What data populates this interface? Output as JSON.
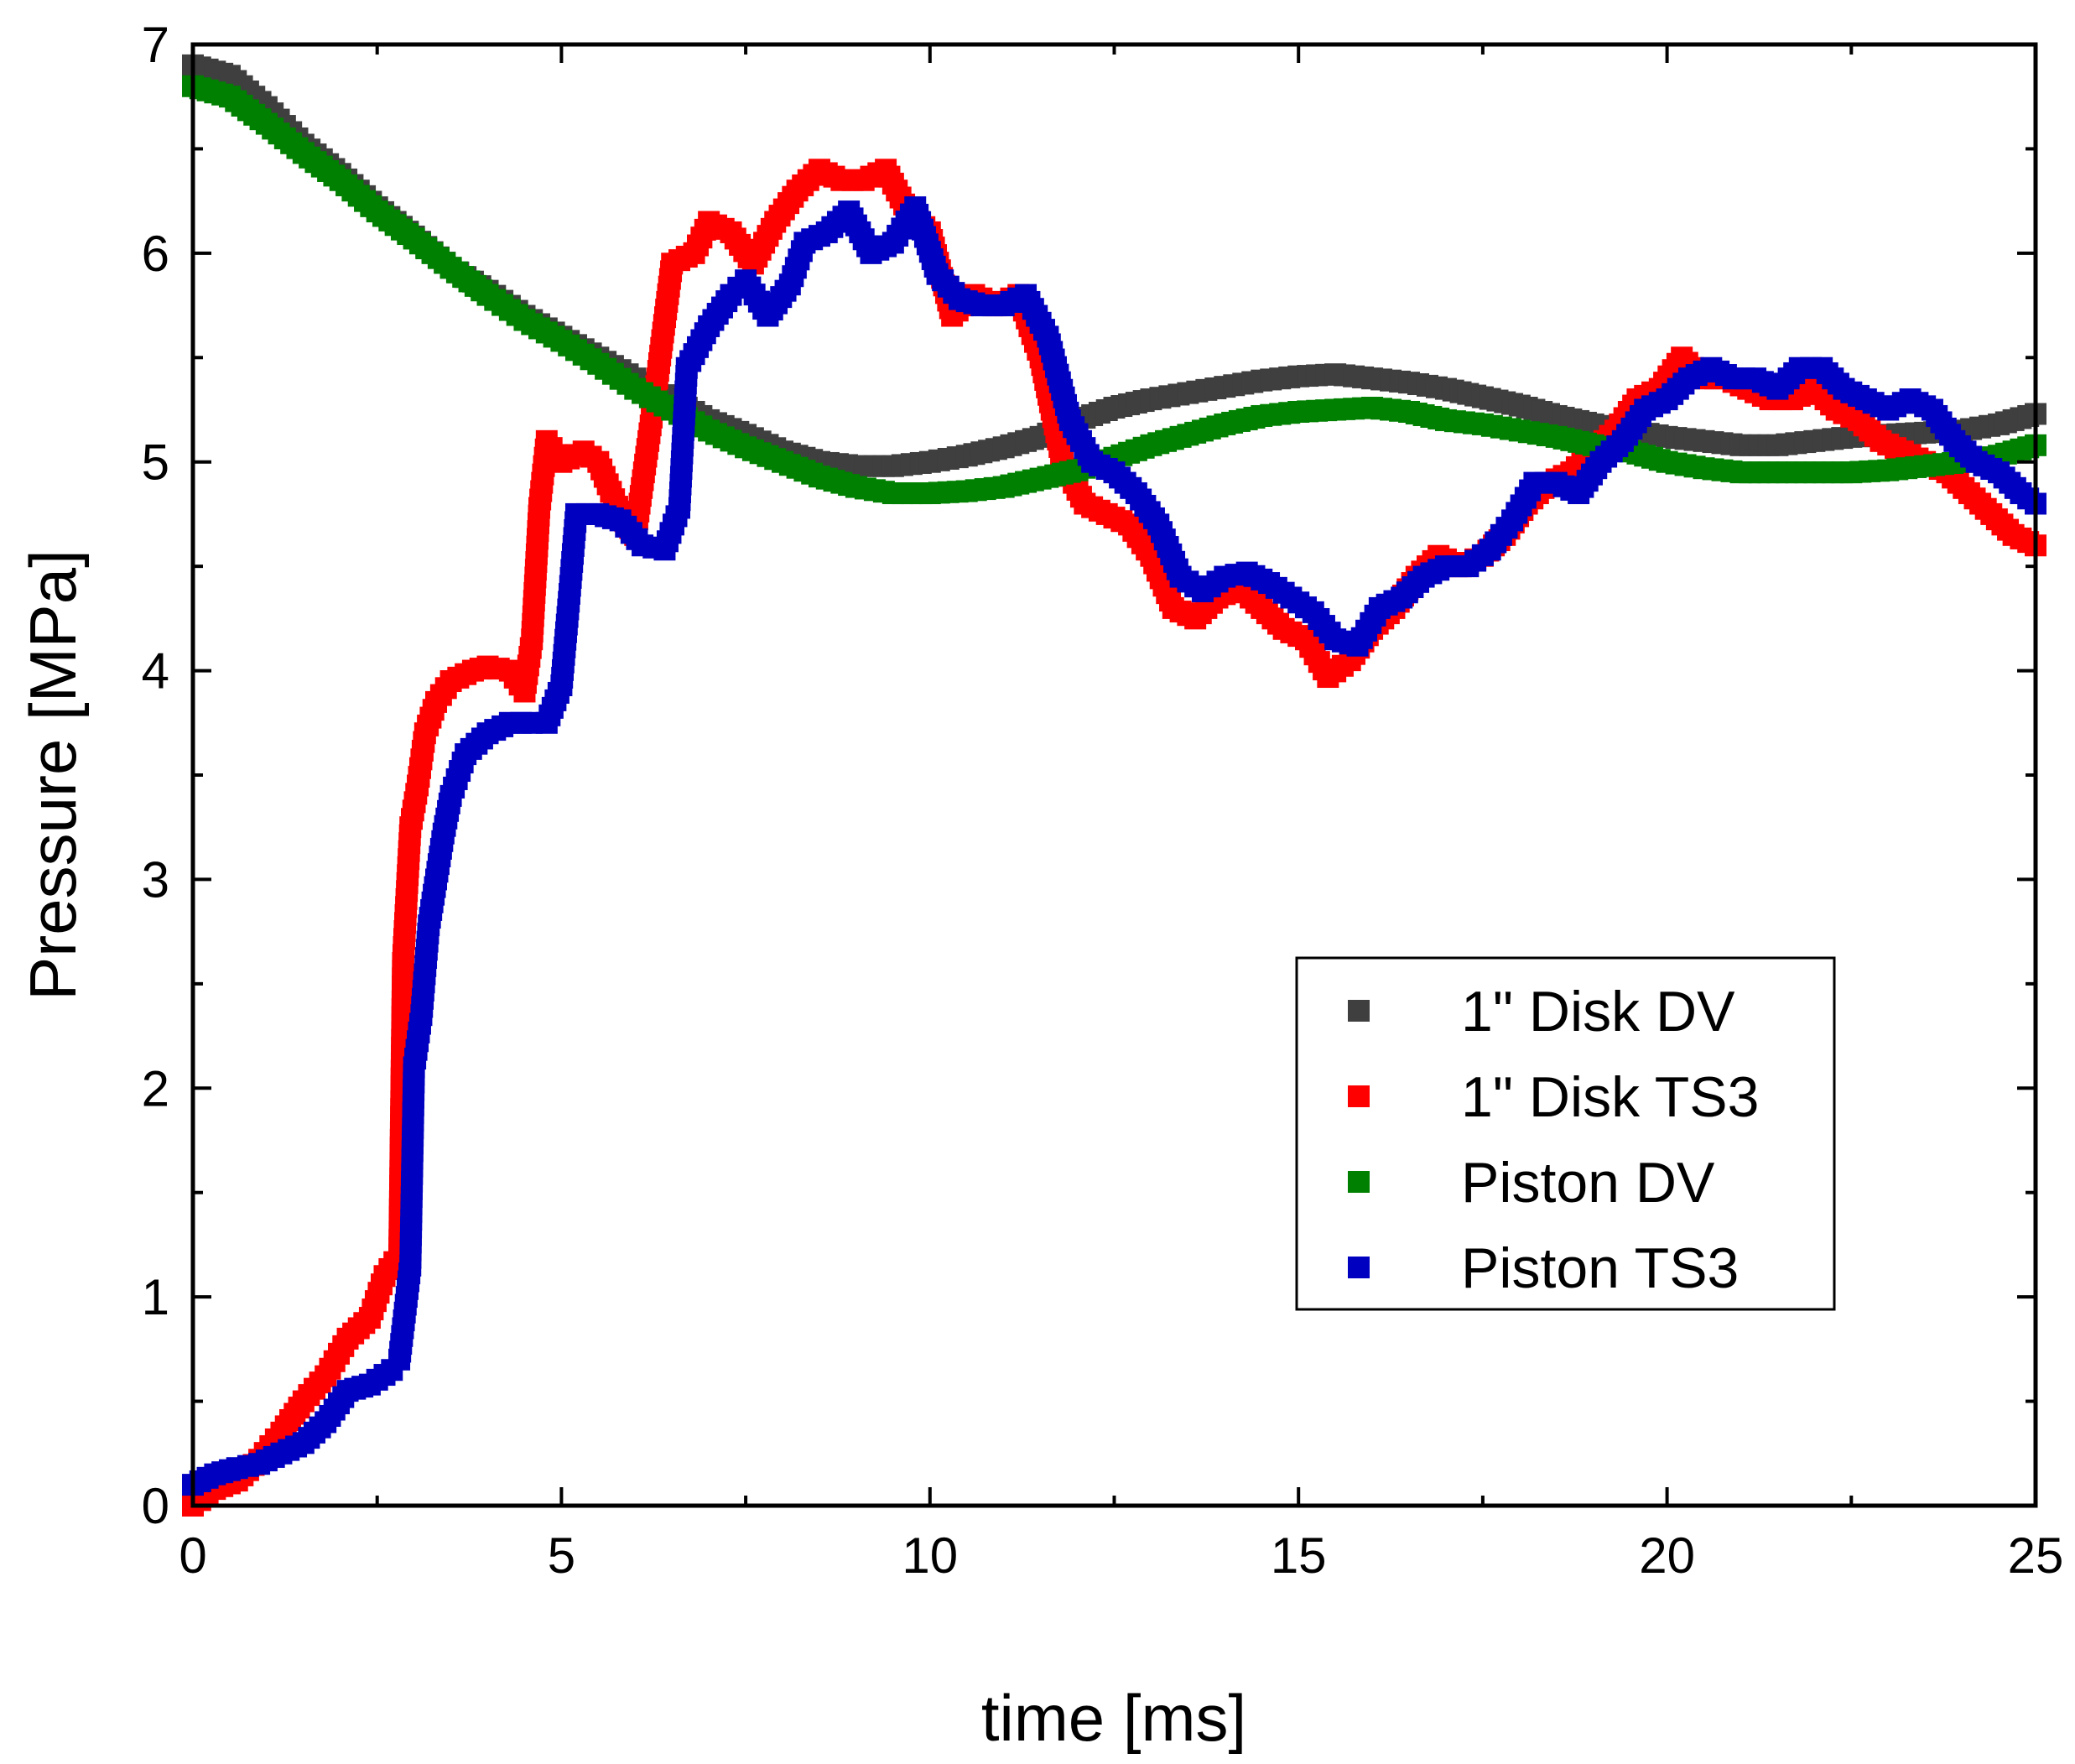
{
  "chart_data": {
    "type": "scatter",
    "title": "",
    "xlabel": "time [ms]",
    "ylabel": "Pressure [MPa]",
    "xlim": [
      0,
      25
    ],
    "ylim": [
      0,
      7
    ],
    "xticks": [
      0,
      5,
      10,
      15,
      20,
      25
    ],
    "yticks": [
      0,
      1,
      2,
      3,
      4,
      5,
      6,
      7
    ],
    "grid": false,
    "legend_position": "lower-right",
    "marker": "square",
    "series": [
      {
        "name": "1\" Disk DV",
        "color": "#3f3f3f",
        "points": [
          [
            0,
            6.9
          ],
          [
            0.5,
            6.85
          ],
          [
            1,
            6.7
          ],
          [
            1.5,
            6.52
          ],
          [
            2,
            6.38
          ],
          [
            2.5,
            6.22
          ],
          [
            3,
            6.08
          ],
          [
            3.5,
            5.93
          ],
          [
            4,
            5.82
          ],
          [
            4.5,
            5.7
          ],
          [
            5,
            5.6
          ],
          [
            5.5,
            5.5
          ],
          [
            6,
            5.4
          ],
          [
            6.5,
            5.3
          ],
          [
            7,
            5.2
          ],
          [
            7.5,
            5.13
          ],
          [
            8,
            5.05
          ],
          [
            8.5,
            5
          ],
          [
            9,
            4.98
          ],
          [
            9.5,
            4.98
          ],
          [
            10,
            5
          ],
          [
            10.5,
            5.03
          ],
          [
            11,
            5.07
          ],
          [
            11.5,
            5.12
          ],
          [
            12,
            5.2
          ],
          [
            12.5,
            5.26
          ],
          [
            13,
            5.3
          ],
          [
            13.5,
            5.33
          ],
          [
            14,
            5.36
          ],
          [
            14.5,
            5.39
          ],
          [
            15,
            5.41
          ],
          [
            15.5,
            5.42
          ],
          [
            16,
            5.4
          ],
          [
            16.5,
            5.38
          ],
          [
            17,
            5.35
          ],
          [
            17.5,
            5.31
          ],
          [
            18,
            5.27
          ],
          [
            18.5,
            5.22
          ],
          [
            19,
            5.18
          ],
          [
            19.5,
            5.15
          ],
          [
            20,
            5.12
          ],
          [
            20.5,
            5.1
          ],
          [
            21,
            5.08
          ],
          [
            21.5,
            5.08
          ],
          [
            22,
            5.1
          ],
          [
            22.5,
            5.12
          ],
          [
            23,
            5.13
          ],
          [
            23.5,
            5.14
          ],
          [
            24,
            5.15
          ],
          [
            24.5,
            5.18
          ],
          [
            25,
            5.23
          ]
        ]
      },
      {
        "name": "1\" Disk TS3",
        "color": "#ff0000",
        "points": [
          [
            0,
            0
          ],
          [
            0.3,
            0.08
          ],
          [
            0.6,
            0.12
          ],
          [
            0.9,
            0.22
          ],
          [
            1.2,
            0.35
          ],
          [
            1.5,
            0.5
          ],
          [
            1.8,
            0.62
          ],
          [
            2.1,
            0.8
          ],
          [
            2.4,
            0.9
          ],
          [
            2.6,
            1.1
          ],
          [
            2.8,
            1.2
          ],
          [
            2.85,
            2.6
          ],
          [
            2.95,
            3.25
          ],
          [
            3.05,
            3.45
          ],
          [
            3.15,
            3.7
          ],
          [
            3.3,
            3.85
          ],
          [
            3.5,
            3.95
          ],
          [
            3.8,
            4
          ],
          [
            4,
            4.02
          ],
          [
            4.3,
            4
          ],
          [
            4.5,
            3.9
          ],
          [
            4.6,
            4.15
          ],
          [
            4.7,
            4.78
          ],
          [
            4.8,
            5.1
          ],
          [
            5,
            5
          ],
          [
            5.3,
            5.05
          ],
          [
            5.5,
            5
          ],
          [
            5.8,
            4.75
          ],
          [
            6,
            4.65
          ],
          [
            6.3,
            5.4
          ],
          [
            6.5,
            5.95
          ],
          [
            6.8,
            6
          ],
          [
            7,
            6.15
          ],
          [
            7.3,
            6.1
          ],
          [
            7.6,
            5.95
          ],
          [
            7.9,
            6.15
          ],
          [
            8.2,
            6.3
          ],
          [
            8.5,
            6.4
          ],
          [
            8.8,
            6.35
          ],
          [
            9.1,
            6.35
          ],
          [
            9.4,
            6.4
          ],
          [
            9.7,
            6.2
          ],
          [
            10,
            6.1
          ],
          [
            10.3,
            5.7
          ],
          [
            10.6,
            5.8
          ],
          [
            10.9,
            5.75
          ],
          [
            11.2,
            5.8
          ],
          [
            11.5,
            5.5
          ],
          [
            11.8,
            5
          ],
          [
            12.1,
            4.8
          ],
          [
            12.4,
            4.75
          ],
          [
            12.7,
            4.7
          ],
          [
            13,
            4.55
          ],
          [
            13.3,
            4.3
          ],
          [
            13.6,
            4.25
          ],
          [
            13.9,
            4.35
          ],
          [
            14.2,
            4.4
          ],
          [
            14.5,
            4.3
          ],
          [
            14.8,
            4.2
          ],
          [
            15.1,
            4.15
          ],
          [
            15.4,
            3.97
          ],
          [
            15.7,
            4.05
          ],
          [
            16,
            4.2
          ],
          [
            16.3,
            4.3
          ],
          [
            16.6,
            4.45
          ],
          [
            16.9,
            4.55
          ],
          [
            17.2,
            4.5
          ],
          [
            17.5,
            4.55
          ],
          [
            17.8,
            4.65
          ],
          [
            18.1,
            4.8
          ],
          [
            18.4,
            4.9
          ],
          [
            18.7,
            4.95
          ],
          [
            19,
            5.05
          ],
          [
            19.3,
            5.15
          ],
          [
            19.6,
            5.3
          ],
          [
            19.9,
            5.35
          ],
          [
            20.2,
            5.5
          ],
          [
            20.5,
            5.4
          ],
          [
            20.8,
            5.4
          ],
          [
            21.1,
            5.35
          ],
          [
            21.4,
            5.3
          ],
          [
            21.7,
            5.3
          ],
          [
            22,
            5.35
          ],
          [
            22.3,
            5.25
          ],
          [
            22.6,
            5.2
          ],
          [
            22.9,
            5.1
          ],
          [
            23.2,
            5.05
          ],
          [
            23.5,
            5
          ],
          [
            23.8,
            4.95
          ],
          [
            24.1,
            4.85
          ],
          [
            24.4,
            4.75
          ],
          [
            24.7,
            4.65
          ],
          [
            25,
            4.6
          ]
        ]
      },
      {
        "name": "Piston DV",
        "color": "#008000",
        "points": [
          [
            0,
            6.8
          ],
          [
            0.5,
            6.75
          ],
          [
            1,
            6.62
          ],
          [
            1.5,
            6.48
          ],
          [
            2,
            6.35
          ],
          [
            2.5,
            6.2
          ],
          [
            3,
            6.07
          ],
          [
            3.5,
            5.93
          ],
          [
            4,
            5.8
          ],
          [
            4.5,
            5.68
          ],
          [
            5,
            5.58
          ],
          [
            5.5,
            5.47
          ],
          [
            6,
            5.35
          ],
          [
            6.5,
            5.25
          ],
          [
            7,
            5.15
          ],
          [
            7.5,
            5.07
          ],
          [
            8,
            5
          ],
          [
            8.5,
            4.93
          ],
          [
            9,
            4.88
          ],
          [
            9.5,
            4.85
          ],
          [
            10,
            4.85
          ],
          [
            10.5,
            4.86
          ],
          [
            11,
            4.88
          ],
          [
            11.5,
            4.92
          ],
          [
            12,
            4.96
          ],
          [
            12.5,
            5.02
          ],
          [
            13,
            5.08
          ],
          [
            13.5,
            5.13
          ],
          [
            14,
            5.18
          ],
          [
            14.5,
            5.22
          ],
          [
            15,
            5.24
          ],
          [
            15.5,
            5.25
          ],
          [
            16,
            5.26
          ],
          [
            16.5,
            5.24
          ],
          [
            17,
            5.2
          ],
          [
            17.5,
            5.18
          ],
          [
            18,
            5.15
          ],
          [
            18.5,
            5.12
          ],
          [
            19,
            5.08
          ],
          [
            19.5,
            5.05
          ],
          [
            20,
            5
          ],
          [
            20.5,
            4.97
          ],
          [
            21,
            4.95
          ],
          [
            21.5,
            4.95
          ],
          [
            22,
            4.95
          ],
          [
            22.5,
            4.95
          ],
          [
            23,
            4.96
          ],
          [
            23.5,
            4.98
          ],
          [
            24,
            5
          ],
          [
            24.5,
            5.03
          ],
          [
            25,
            5.08
          ]
        ]
      },
      {
        "name": "Piston TS3",
        "color": "#0000c0",
        "points": [
          [
            0,
            0.1
          ],
          [
            0.3,
            0.15
          ],
          [
            0.6,
            0.18
          ],
          [
            0.9,
            0.2
          ],
          [
            1.2,
            0.25
          ],
          [
            1.5,
            0.3
          ],
          [
            1.8,
            0.4
          ],
          [
            2.1,
            0.55
          ],
          [
            2.4,
            0.58
          ],
          [
            2.7,
            0.65
          ],
          [
            2.8,
            0.7
          ],
          [
            2.95,
            1.15
          ],
          [
            3,
            2.1
          ],
          [
            3.1,
            2.35
          ],
          [
            3.2,
            2.78
          ],
          [
            3.3,
            3
          ],
          [
            3.4,
            3.22
          ],
          [
            3.5,
            3.4
          ],
          [
            3.7,
            3.6
          ],
          [
            4,
            3.7
          ],
          [
            4.3,
            3.75
          ],
          [
            4.6,
            3.75
          ],
          [
            4.8,
            3.75
          ],
          [
            5,
            3.93
          ],
          [
            5.1,
            4.33
          ],
          [
            5.2,
            4.75
          ],
          [
            5.5,
            4.75
          ],
          [
            5.8,
            4.72
          ],
          [
            6.1,
            4.6
          ],
          [
            6.4,
            4.58
          ],
          [
            6.6,
            4.78
          ],
          [
            6.7,
            5.45
          ],
          [
            7,
            5.65
          ],
          [
            7.3,
            5.8
          ],
          [
            7.5,
            5.87
          ],
          [
            7.8,
            5.7
          ],
          [
            8.1,
            5.85
          ],
          [
            8.3,
            6.05
          ],
          [
            8.6,
            6.1
          ],
          [
            8.9,
            6.2
          ],
          [
            9.2,
            6
          ],
          [
            9.5,
            6.05
          ],
          [
            9.8,
            6.22
          ],
          [
            10.1,
            5.9
          ],
          [
            10.4,
            5.78
          ],
          [
            10.7,
            5.75
          ],
          [
            11,
            5.75
          ],
          [
            11.3,
            5.8
          ],
          [
            11.6,
            5.6
          ],
          [
            11.9,
            5.2
          ],
          [
            12.2,
            5
          ],
          [
            12.5,
            4.95
          ],
          [
            12.8,
            4.85
          ],
          [
            13.1,
            4.7
          ],
          [
            13.4,
            4.45
          ],
          [
            13.7,
            4.38
          ],
          [
            14,
            4.45
          ],
          [
            14.3,
            4.47
          ],
          [
            14.6,
            4.42
          ],
          [
            14.9,
            4.35
          ],
          [
            15.2,
            4.28
          ],
          [
            15.5,
            4.15
          ],
          [
            15.8,
            4.12
          ],
          [
            16.1,
            4.3
          ],
          [
            16.4,
            4.35
          ],
          [
            16.7,
            4.45
          ],
          [
            17,
            4.5
          ],
          [
            17.3,
            4.5
          ],
          [
            17.6,
            4.58
          ],
          [
            17.9,
            4.72
          ],
          [
            18.2,
            4.9
          ],
          [
            18.5,
            4.9
          ],
          [
            18.8,
            4.85
          ],
          [
            19.1,
            5
          ],
          [
            19.4,
            5.1
          ],
          [
            19.7,
            5.25
          ],
          [
            20,
            5.3
          ],
          [
            20.3,
            5.4
          ],
          [
            20.6,
            5.45
          ],
          [
            20.9,
            5.4
          ],
          [
            21.2,
            5.4
          ],
          [
            21.5,
            5.35
          ],
          [
            21.8,
            5.45
          ],
          [
            22.1,
            5.45
          ],
          [
            22.4,
            5.35
          ],
          [
            22.7,
            5.3
          ],
          [
            23,
            5.25
          ],
          [
            23.3,
            5.3
          ],
          [
            23.6,
            5.25
          ],
          [
            23.9,
            5.1
          ],
          [
            24.2,
            5
          ],
          [
            24.5,
            4.95
          ],
          [
            24.8,
            4.85
          ],
          [
            25,
            4.8
          ]
        ]
      }
    ]
  }
}
